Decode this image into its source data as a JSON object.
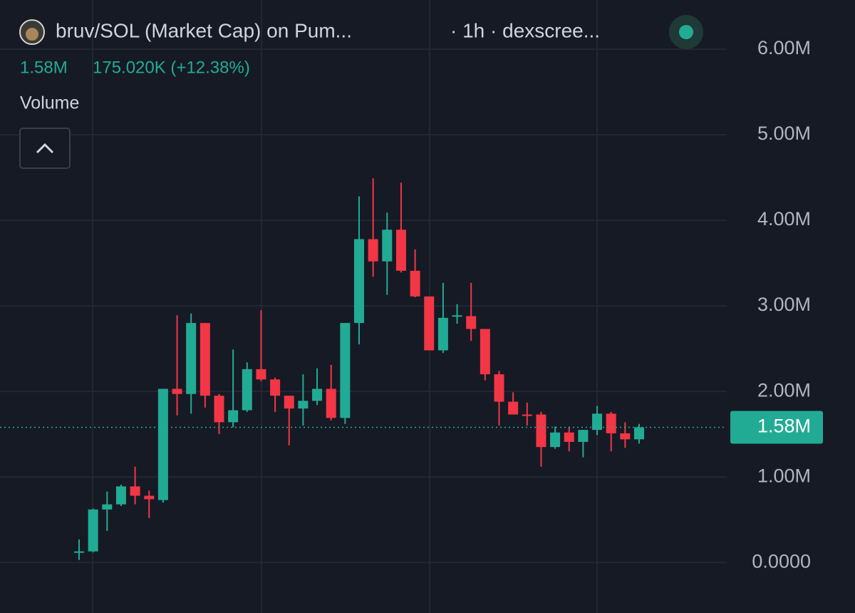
{
  "chart_data": {
    "type": "candlestick",
    "title": "bruv/SOL (Market Cap) on Pum...",
    "subtitle": "· 1h · dexscree...",
    "header_value": "1.58M",
    "change": "175.020K (+12.38%)",
    "indicator": "Volume",
    "up_color": "#22ab94",
    "down_color": "#f23645",
    "grid": true,
    "ylim": [
      -0.59,
      6.575
    ],
    "yticks": [
      {
        "value": 0,
        "label": "0.0000"
      },
      {
        "value": 1,
        "label": "1.00M"
      },
      {
        "value": 2,
        "label": "2.00M"
      },
      {
        "value": 3,
        "label": "3.00M"
      },
      {
        "value": 4,
        "label": "4.00M"
      },
      {
        "value": 5,
        "label": "5.00M"
      },
      {
        "value": 6,
        "label": "6.00M"
      }
    ],
    "last_price": {
      "value": 1.58,
      "label": "1.58M"
    },
    "categories": [
      null,
      null,
      null,
      null,
      null,
      null,
      null,
      null,
      null,
      null,
      null,
      null,
      null,
      null,
      null,
      null,
      null,
      null,
      null,
      null,
      null,
      null,
      null,
      null,
      null,
      null,
      null,
      null,
      null,
      null,
      null,
      null,
      null,
      null,
      null,
      null,
      null,
      null,
      null,
      null,
      null
    ],
    "open": [
      0.12,
      0.13,
      0.62,
      0.68,
      0.89,
      0.78,
      0.73,
      2.03,
      1.97,
      2.8,
      1.95,
      1.64,
      1.78,
      2.26,
      2.14,
      1.95,
      1.8,
      1.89,
      2.03,
      1.69,
      2.8,
      3.78,
      3.52,
      3.89,
      3.41,
      3.11,
      2.48,
      2.88,
      2.88,
      2.73,
      2.2,
      1.88,
      1.73,
      1.73,
      1.35,
      1.52,
      1.41,
      1.55,
      1.74,
      1.51,
      1.44
    ],
    "high": [
      0.27,
      0.63,
      0.83,
      0.91,
      1.12,
      0.84,
      2.03,
      2.89,
      2.91,
      2.8,
      1.97,
      2.49,
      2.34,
      2.95,
      2.16,
      1.95,
      2.2,
      2.27,
      2.31,
      2.8,
      4.28,
      4.49,
      4.09,
      4.44,
      3.66,
      3.11,
      3.27,
      3.02,
      3.27,
      2.73,
      2.24,
      1.99,
      1.87,
      1.76,
      1.59,
      1.59,
      1.55,
      1.83,
      1.76,
      1.64,
      1.62
    ],
    "low": [
      0.03,
      0.12,
      0.37,
      0.66,
      0.68,
      0.52,
      0.7,
      1.72,
      1.74,
      1.81,
      1.5,
      1.58,
      1.76,
      2.12,
      1.76,
      1.37,
      1.6,
      1.84,
      1.66,
      1.62,
      2.55,
      3.34,
      3.13,
      3.39,
      3.1,
      2.48,
      2.45,
      2.79,
      2.59,
      2.13,
      1.6,
      1.73,
      1.6,
      1.12,
      1.33,
      1.3,
      1.23,
      1.49,
      1.3,
      1.34,
      1.39
    ],
    "close": [
      0.13,
      0.62,
      0.68,
      0.89,
      0.78,
      0.74,
      2.03,
      1.97,
      2.8,
      1.95,
      1.64,
      1.78,
      2.26,
      2.14,
      1.95,
      1.8,
      1.89,
      2.03,
      1.69,
      2.8,
      3.78,
      3.52,
      3.89,
      3.41,
      3.11,
      2.48,
      2.86,
      2.89,
      2.73,
      2.2,
      1.88,
      1.73,
      1.72,
      1.35,
      1.52,
      1.41,
      1.55,
      1.74,
      1.51,
      1.44,
      1.58
    ]
  }
}
